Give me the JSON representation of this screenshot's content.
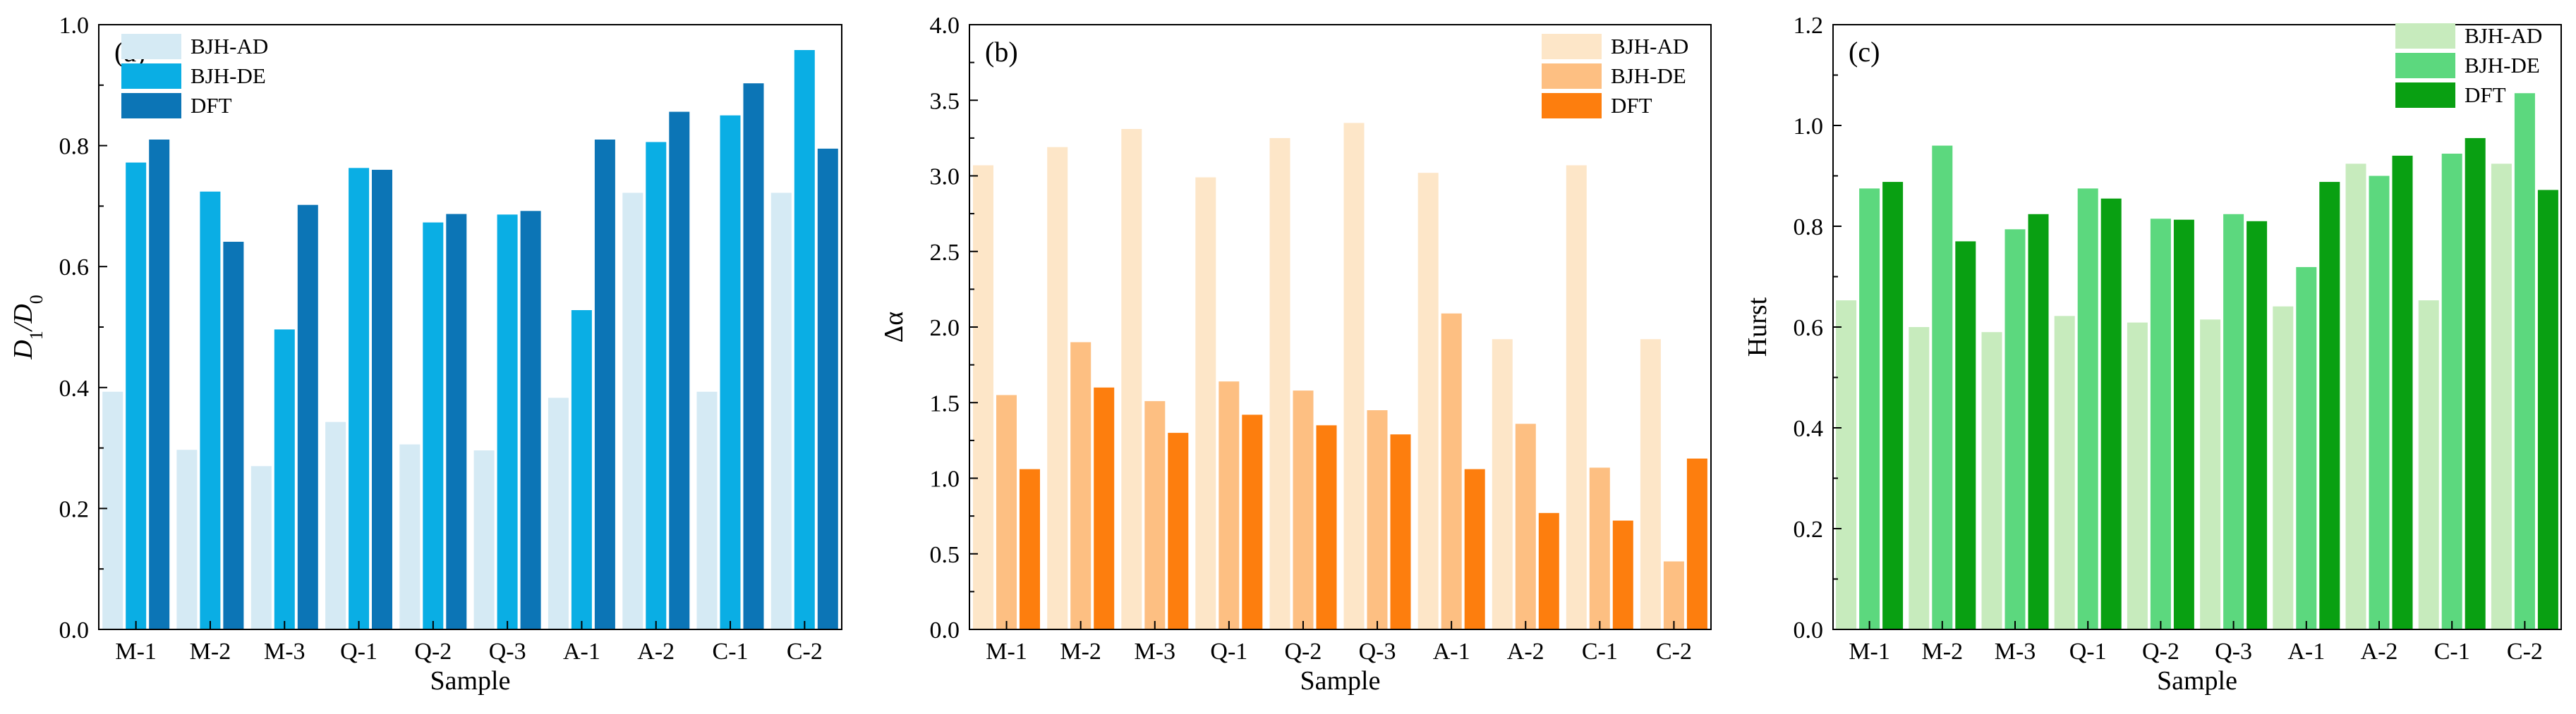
{
  "figure_name": "Multifractal parameters comparison",
  "chart_data": [
    {
      "type": "bar",
      "panel_label": "(a)",
      "xlabel": "Sample",
      "ylabel_main": "D",
      "ylabel_sub1": "1",
      "ylabel_sep": "/D",
      "ylabel_sub2": "0",
      "ylim": [
        0,
        1.0
      ],
      "yticks": [
        "0.0",
        "0.2",
        "0.4",
        "0.6",
        "0.8",
        "1.0"
      ],
      "categories": [
        "M-1",
        "M-2",
        "M-3",
        "Q-1",
        "Q-2",
        "Q-3",
        "A-1",
        "A-2",
        "C-1",
        "C-2"
      ],
      "legend_position": "top-left",
      "series": [
        {
          "name": "BJH-AD",
          "color": "#d5eaf4",
          "values": [
            0.393,
            0.297,
            0.27,
            0.343,
            0.306,
            0.296,
            0.383,
            0.722,
            0.393,
            0.722
          ]
        },
        {
          "name": "BJH-DE",
          "color": "#0aaee4",
          "values": [
            0.772,
            0.724,
            0.496,
            0.763,
            0.673,
            0.686,
            0.528,
            0.806,
            0.85,
            0.958
          ]
        },
        {
          "name": "DFT",
          "color": "#0c75b6",
          "values": [
            0.81,
            0.641,
            0.702,
            0.76,
            0.687,
            0.692,
            0.81,
            0.856,
            0.903,
            0.795
          ]
        }
      ]
    },
    {
      "type": "bar",
      "panel_label": "(b)",
      "xlabel": "Sample",
      "ylabel": "Δα",
      "ylim": [
        0,
        4.0
      ],
      "yticks": [
        "0.0",
        "0.5",
        "1.0",
        "1.5",
        "2.0",
        "2.5",
        "3.0",
        "3.5",
        "4.0"
      ],
      "categories": [
        "M-1",
        "M-2",
        "M-3",
        "Q-1",
        "Q-2",
        "Q-3",
        "A-1",
        "A-2",
        "C-1",
        "C-2"
      ],
      "legend_position": "top-right",
      "series": [
        {
          "name": "BJH-AD",
          "color": "#fde6c8",
          "values": [
            3.07,
            3.19,
            3.31,
            2.99,
            3.25,
            3.35,
            3.02,
            1.92,
            3.07,
            1.92
          ]
        },
        {
          "name": "BJH-DE",
          "color": "#fdbf82",
          "values": [
            1.55,
            1.9,
            1.51,
            1.64,
            1.58,
            1.45,
            2.09,
            1.36,
            1.07,
            0.45
          ]
        },
        {
          "name": "DFT",
          "color": "#fd7e0e",
          "values": [
            1.06,
            1.6,
            1.3,
            1.42,
            1.35,
            1.29,
            1.06,
            0.77,
            0.72,
            1.13
          ]
        }
      ]
    },
    {
      "type": "bar",
      "panel_label": "(c)",
      "xlabel": "Sample",
      "ylabel": "Hurst",
      "ylim": [
        0,
        1.2
      ],
      "yticks": [
        "0.0",
        "0.2",
        "0.4",
        "0.6",
        "0.8",
        "1.0",
        "1.2"
      ],
      "categories": [
        "M-1",
        "M-2",
        "M-3",
        "Q-1",
        "Q-2",
        "Q-3",
        "A-1",
        "A-2",
        "C-1",
        "C-2"
      ],
      "legend_position": "top-center",
      "series": [
        {
          "name": "BJH-AD",
          "color": "#c7ebbd",
          "values": [
            0.653,
            0.6,
            0.59,
            0.622,
            0.609,
            0.615,
            0.641,
            0.924,
            0.653,
            0.924
          ]
        },
        {
          "name": "BJH-DE",
          "color": "#5cd87e",
          "values": [
            0.875,
            0.96,
            0.794,
            0.875,
            0.815,
            0.824,
            0.719,
            0.9,
            0.944,
            1.064
          ]
        },
        {
          "name": "DFT",
          "color": "#09a012",
          "values": [
            0.888,
            0.77,
            0.824,
            0.855,
            0.813,
            0.81,
            0.888,
            0.94,
            0.975,
            0.872
          ]
        }
      ]
    }
  ]
}
